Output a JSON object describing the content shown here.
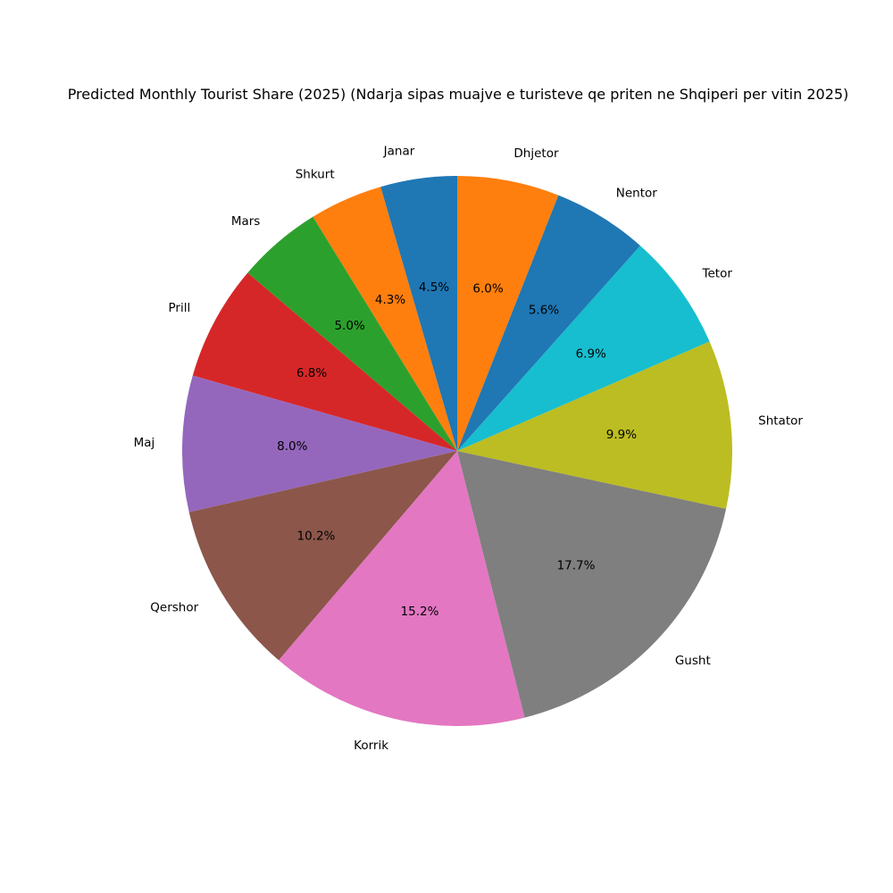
{
  "chart_data": {
    "type": "pie",
    "title": "Predicted Monthly Tourist Share (2025) (Ndarja sipas muajve e turisteve qe priten ne Shqiperi per vitin 2025)",
    "start_angle": 90,
    "direction": "counterclockwise",
    "categories": [
      "Janar",
      "Shkurt",
      "Mars",
      "Prill",
      "Maj",
      "Qershor",
      "Korrik",
      "Gusht",
      "Shtator",
      "Tetor",
      "Nentor",
      "Dhjetor"
    ],
    "values": [
      4.5,
      4.3,
      5.0,
      6.8,
      8.0,
      10.2,
      15.2,
      17.7,
      9.9,
      6.9,
      5.6,
      6.0
    ],
    "value_labels": [
      "4.5%",
      "4.3%",
      "5.0%",
      "6.8%",
      "8.0%",
      "10.2%",
      "15.2%",
      "17.7%",
      "9.9%",
      "6.9%",
      "5.6%",
      "6.0%"
    ],
    "colors": [
      "#1f77b4",
      "#ff7f0e",
      "#2ca02c",
      "#d62728",
      "#9467bd",
      "#8c564b",
      "#e377c2",
      "#7f7f7f",
      "#bcbd22",
      "#17becf",
      "#1f77b4",
      "#ff7f0e"
    ],
    "legend": "none"
  }
}
